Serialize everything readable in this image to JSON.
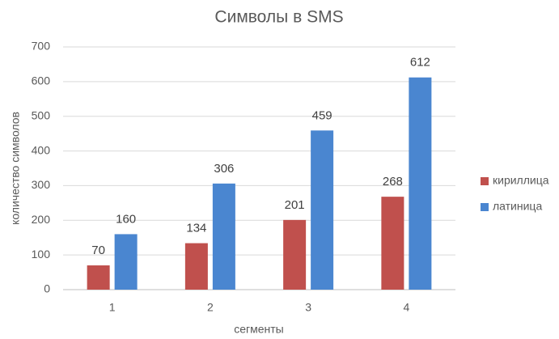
{
  "chart_data": {
    "type": "bar",
    "title": "Символы в SMS",
    "x_label": "сегменты",
    "y_label": "количество символов",
    "categories": [
      "1",
      "2",
      "3",
      "4"
    ],
    "series": [
      {
        "name": "кириллица",
        "color": "#c0504d",
        "values": [
          70,
          134,
          201,
          268
        ]
      },
      {
        "name": "латиница",
        "color": "#4a86d0",
        "values": [
          160,
          306,
          459,
          612
        ]
      }
    ],
    "ylim": [
      0,
      700
    ],
    "yticks": [
      0,
      100,
      200,
      300,
      400,
      500,
      600,
      700
    ],
    "grid": true,
    "legend": "right",
    "data_labels": true
  }
}
